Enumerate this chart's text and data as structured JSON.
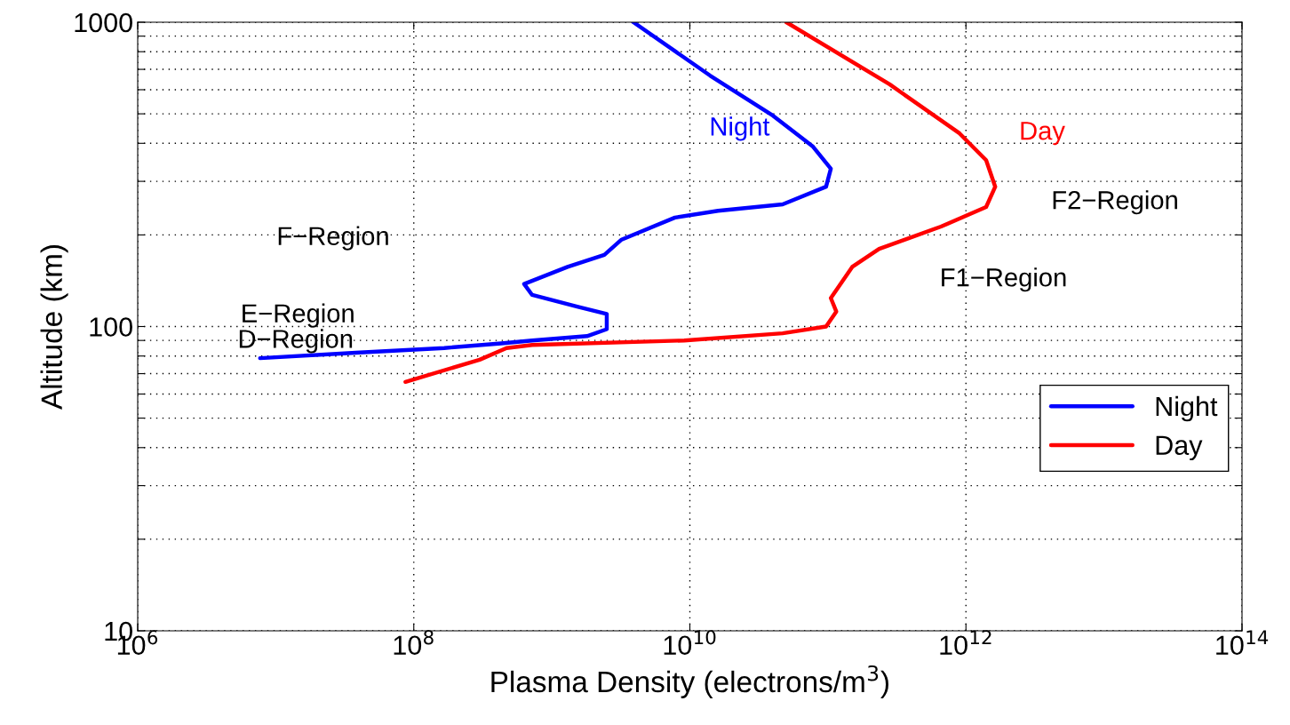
{
  "chart_data": {
    "type": "line",
    "xlabel": "Plasma Density (electrons/m$^{3}$)",
    "ylabel": "Altitude (km)",
    "log": "xy",
    "xlim": [
      1000000,
      100000000000000
    ],
    "xticks": [
      {
        "value": 1000000,
        "label": "10$^{6}$"
      },
      {
        "value": 100000000,
        "label": "10$^{8}$"
      },
      {
        "value": 10000000000,
        "label": "10$^{10}$"
      },
      {
        "value": 1000000000000,
        "label": "10$^{12}$"
      },
      {
        "value": 100000000000000,
        "label": "10$^{14}$"
      }
    ],
    "ylim": [
      10,
      1000
    ],
    "yticks": [
      10,
      {
        "value": 20,
        "label": null
      },
      {
        "value": 30,
        "label": null
      },
      {
        "value": 40,
        "label": null
      },
      {
        "value": 50,
        "label": null
      },
      {
        "value": 60,
        "label": null
      },
      {
        "value": 70,
        "label": null
      },
      {
        "value": 80,
        "label": null
      },
      {
        "value": 90,
        "label": null
      },
      100,
      {
        "value": 200,
        "label": null
      },
      {
        "value": 300,
        "label": null
      },
      {
        "value": 400,
        "label": null
      },
      {
        "value": 500,
        "label": null
      },
      {
        "value": 600,
        "label": null
      },
      {
        "value": 700,
        "label": null
      },
      {
        "value": 800,
        "label": null
      },
      {
        "value": 900,
        "label": null
      },
      1000
    ],
    "grid": true,
    "legend": "bottom right",
    "series": [
      {
        "name": "Night",
        "color": "#0000ff",
        "x": [
          3900000000,
          14000000000,
          40000000000,
          78000000000,
          105000000000,
          97000000000,
          47000000000,
          16000000000,
          7800000000,
          3200000000,
          2400000000,
          1300000000,
          630000000,
          720000000,
          1550000000,
          2500000000,
          2500000000,
          1800000000,
          720000000,
          430000000,
          166000000,
          38000000,
          7700000
        ],
        "values": [
          1000,
          668,
          493,
          390,
          330,
          288,
          252,
          240,
          228,
          193,
          172,
          157,
          138,
          127,
          116,
          110,
          98,
          93,
          90,
          88,
          85,
          82,
          78.7
        ]
      },
      {
        "name": "Day",
        "color": "#ff0000",
        "x": [
          50000000000,
          280000000000,
          900000000000,
          1400000000000,
          1630000000000,
          1400000000000,
          660000000000,
          235000000000,
          150000000000,
          105000000000,
          115000000000,
          97000000000,
          47000000000,
          9100000000,
          720000000,
          470000000,
          300000000,
          87000000
        ],
        "values": [
          1000,
          625,
          431,
          352,
          288,
          247,
          213,
          180,
          157,
          124,
          112,
          100,
          95,
          90,
          87,
          85,
          77.8,
          65.8
        ]
      }
    ],
    "annotations": [
      "Night",
      "Day",
      "F2−Region",
      "F1−Region",
      "F−Region",
      "E−Region",
      "D−Region"
    ]
  }
}
